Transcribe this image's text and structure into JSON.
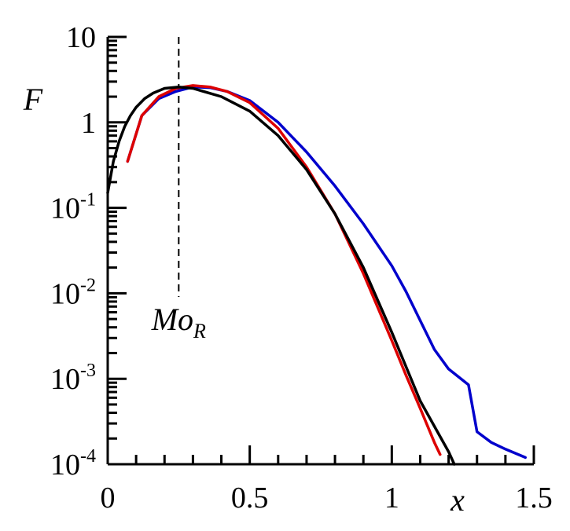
{
  "chart_data": {
    "type": "line",
    "title": "",
    "xlabel": "x",
    "ylabel": "F",
    "xlim": [
      0,
      1.5
    ],
    "ylim": [
      0.0001,
      10
    ],
    "yscale": "log",
    "grid": false,
    "x_ticks": [
      {
        "value": 0,
        "label": "0"
      },
      {
        "value": 0.5,
        "label": "0.5"
      },
      {
        "value": 1,
        "label": "1"
      },
      {
        "value": 1.5,
        "label": "1.5"
      }
    ],
    "y_ticks": [
      {
        "value": 10,
        "base": "10",
        "exp": ""
      },
      {
        "value": 1,
        "base": "1",
        "exp": ""
      },
      {
        "value": 0.1,
        "base": "10",
        "exp": "-1"
      },
      {
        "value": 0.01,
        "base": "10",
        "exp": "-2"
      },
      {
        "value": 0.001,
        "base": "10",
        "exp": "-3"
      },
      {
        "value": 0.0001,
        "base": "10",
        "exp": "-4"
      }
    ],
    "annotations": [
      {
        "text": "Mo",
        "subscript": "R",
        "x": 0.25,
        "style": "dashed-vertical-line"
      }
    ],
    "series": [
      {
        "color": "#0000cc",
        "x": [
          0.07,
          0.12,
          0.18,
          0.24,
          0.3,
          0.36,
          0.42,
          0.5,
          0.6,
          0.7,
          0.8,
          0.9,
          1.0,
          1.05,
          1.1,
          1.15,
          1.2,
          1.27,
          1.3,
          1.35,
          1.4,
          1.47
        ],
        "y": [
          0.35,
          1.2,
          1.9,
          2.3,
          2.6,
          2.55,
          2.3,
          1.8,
          1.0,
          0.45,
          0.18,
          0.065,
          0.021,
          0.0105,
          0.0048,
          0.0022,
          0.0013,
          0.00085,
          0.00024,
          0.00018,
          0.00015,
          0.00012
        ]
      },
      {
        "color": "#dd0000",
        "x": [
          0.07,
          0.12,
          0.18,
          0.24,
          0.3,
          0.36,
          0.42,
          0.5,
          0.6,
          0.7,
          0.8,
          0.9,
          1.0,
          1.05,
          1.1,
          1.15,
          1.17
        ],
        "y": [
          0.35,
          1.2,
          2.0,
          2.5,
          2.7,
          2.6,
          2.3,
          1.7,
          0.85,
          0.3,
          0.085,
          0.017,
          0.0028,
          0.0011,
          0.00045,
          0.00018,
          0.00013
        ]
      },
      {
        "color": "#000000",
        "x": [
          0,
          0.02,
          0.04,
          0.06,
          0.08,
          0.1,
          0.13,
          0.16,
          0.2,
          0.25,
          0.3,
          0.4,
          0.5,
          0.6,
          0.7,
          0.8,
          0.9,
          1.0,
          1.1,
          1.2,
          1.22
        ],
        "y": [
          0.15,
          0.35,
          0.6,
          0.9,
          1.2,
          1.5,
          1.9,
          2.2,
          2.5,
          2.6,
          2.5,
          2.0,
          1.35,
          0.7,
          0.28,
          0.085,
          0.02,
          0.0035,
          0.00055,
          0.00014,
          0.0001
        ]
      }
    ]
  }
}
